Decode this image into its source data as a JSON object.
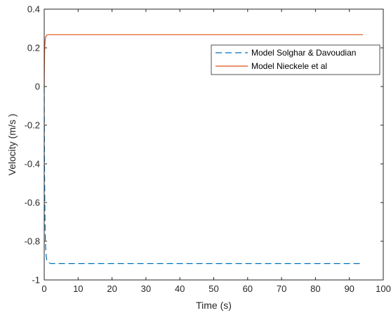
{
  "chart_data": {
    "type": "line",
    "title": "",
    "xlabel": "Time (s)",
    "ylabel": "Velocity (m/s )",
    "xlim": [
      0,
      100
    ],
    "ylim": [
      -1,
      0.4
    ],
    "xticks": [
      0,
      10,
      20,
      30,
      40,
      50,
      60,
      70,
      80,
      90,
      100
    ],
    "yticks": [
      0.4,
      0.2,
      0,
      -0.2,
      -0.4,
      -0.6,
      -0.8,
      -1
    ],
    "xtick_labels": [
      "0",
      "10",
      "20",
      "30",
      "40",
      "50",
      "60",
      "70",
      "80",
      "90",
      "100"
    ],
    "ytick_labels": [
      "0.4",
      "0.2",
      "0",
      "-0.2",
      "-0.4",
      "-0.6",
      "-0.8",
      "-1"
    ],
    "grid": false,
    "legend_position": "top-right",
    "series": [
      {
        "name": "Model Solghar & Davoudian",
        "color": "#0072BD",
        "style": "dashed",
        "x": [
          0,
          0.1,
          0.2,
          0.3,
          0.4,
          0.6,
          0.8,
          1.2,
          2,
          5,
          20,
          40,
          60,
          80,
          94
        ],
        "y": [
          0,
          -0.45,
          -0.65,
          -0.76,
          -0.83,
          -0.88,
          -0.9,
          -0.91,
          -0.915,
          -0.915,
          -0.915,
          -0.915,
          -0.915,
          -0.915,
          -0.915
        ]
      },
      {
        "name": "Model Nieckele et al",
        "color": "#D95319",
        "style": "solid",
        "x": [
          0,
          0.1,
          0.2,
          0.3,
          0.4,
          0.6,
          0.8,
          1.2,
          2,
          5,
          20,
          40,
          60,
          80,
          94
        ],
        "y": [
          0,
          0.17,
          0.22,
          0.245,
          0.255,
          0.262,
          0.266,
          0.268,
          0.268,
          0.268,
          0.268,
          0.268,
          0.268,
          0.268,
          0.268
        ]
      }
    ]
  }
}
